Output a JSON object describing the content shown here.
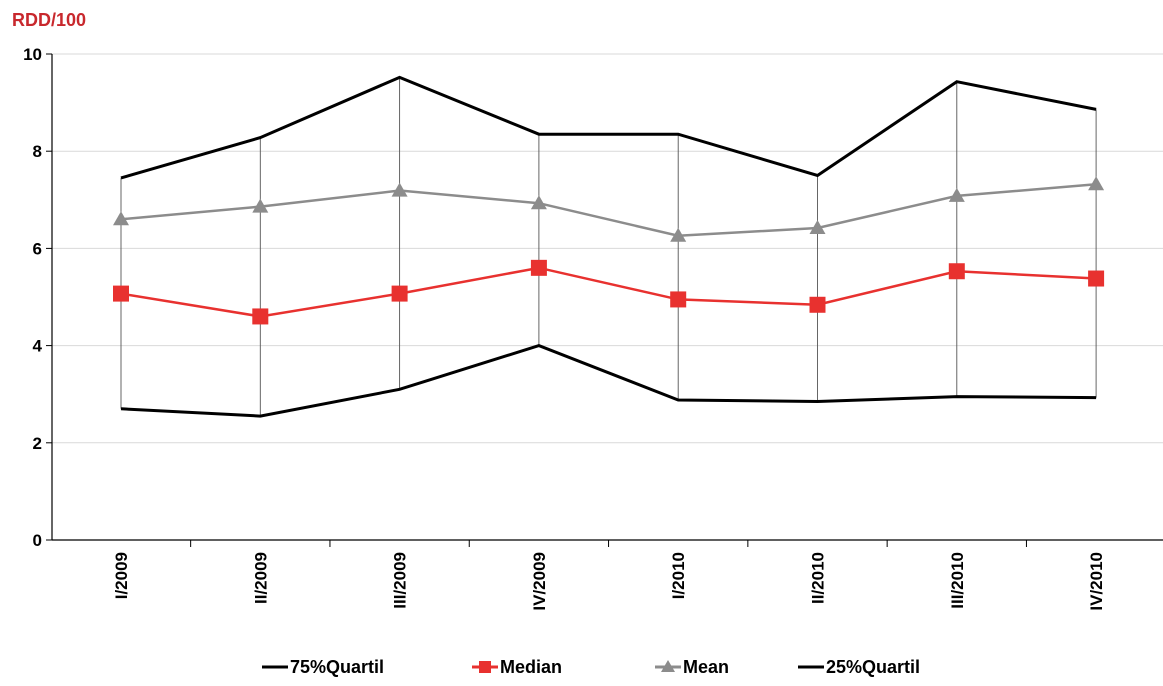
{
  "chart_data": {
    "type": "line",
    "ylabel": "RDD/100",
    "xlabel": "",
    "title": "",
    "ylim": [
      0,
      10
    ],
    "yticks": [
      "0",
      "2",
      "4",
      "6",
      "8",
      "10"
    ],
    "grid": true,
    "legend_position": "bottom",
    "categories": [
      "I/2009",
      "II/2009",
      "III/2009",
      "IV/2009",
      "I/2010",
      "II/2010",
      "III/2010",
      "IV/2010"
    ],
    "series": [
      {
        "name": "75%Quartil",
        "color": "#000000",
        "marker": "none",
        "values": [
          7.45,
          8.28,
          9.52,
          8.35,
          8.35,
          7.5,
          9.43,
          8.86
        ]
      },
      {
        "name": "Median",
        "color": "#e8312f",
        "marker": "square",
        "values": [
          5.07,
          4.6,
          5.07,
          5.6,
          4.95,
          4.84,
          5.53,
          5.38
        ]
      },
      {
        "name": "Mean",
        "color": "#8c8c8c",
        "marker": "triangle",
        "values": [
          6.6,
          6.86,
          7.19,
          6.93,
          6.26,
          6.42,
          7.08,
          7.32
        ]
      },
      {
        "name": "25%Quartil",
        "color": "#000000",
        "marker": "none",
        "values": [
          2.7,
          2.55,
          3.1,
          4.0,
          2.88,
          2.85,
          2.95,
          2.93
        ]
      }
    ]
  }
}
